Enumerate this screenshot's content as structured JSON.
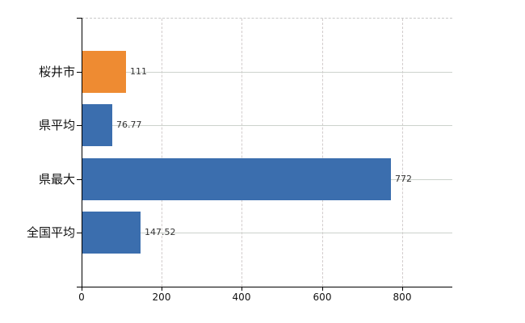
{
  "chart_data": {
    "type": "bar",
    "orientation": "horizontal",
    "title": "",
    "xlabel": "",
    "ylabel": "",
    "categories": [
      "桜井市",
      "県平均",
      "県最大",
      "全国平均"
    ],
    "values": [
      111,
      76.77,
      772,
      147.52
    ],
    "value_labels": [
      "111",
      "76.77",
      "772",
      "147.52"
    ],
    "bar_colors": [
      "#ee8b32",
      "#3b6eae",
      "#3b6eae",
      "#3b6eae"
    ],
    "x_ticks": [
      0,
      200,
      400,
      600,
      800
    ],
    "x_tick_labels": [
      "0",
      "200",
      "400",
      "600",
      "800"
    ],
    "xlim": [
      0,
      925
    ],
    "legend": "none",
    "grid": {
      "horizontal_lines_at_category_centers": true,
      "vertical_dashed_lines_at_ticks": true,
      "top_border_dashed": true
    }
  },
  "colors": {
    "background": "#ffffff",
    "bar_orange": "#ee8b32",
    "bar_blue": "#3b6eae",
    "axis": "#000000",
    "grid_horizontal": "#ccd2cc",
    "grid_vertical_dashed": "#d2cccc",
    "value_label_text": "#333333",
    "category_label_text": "#111111"
  }
}
